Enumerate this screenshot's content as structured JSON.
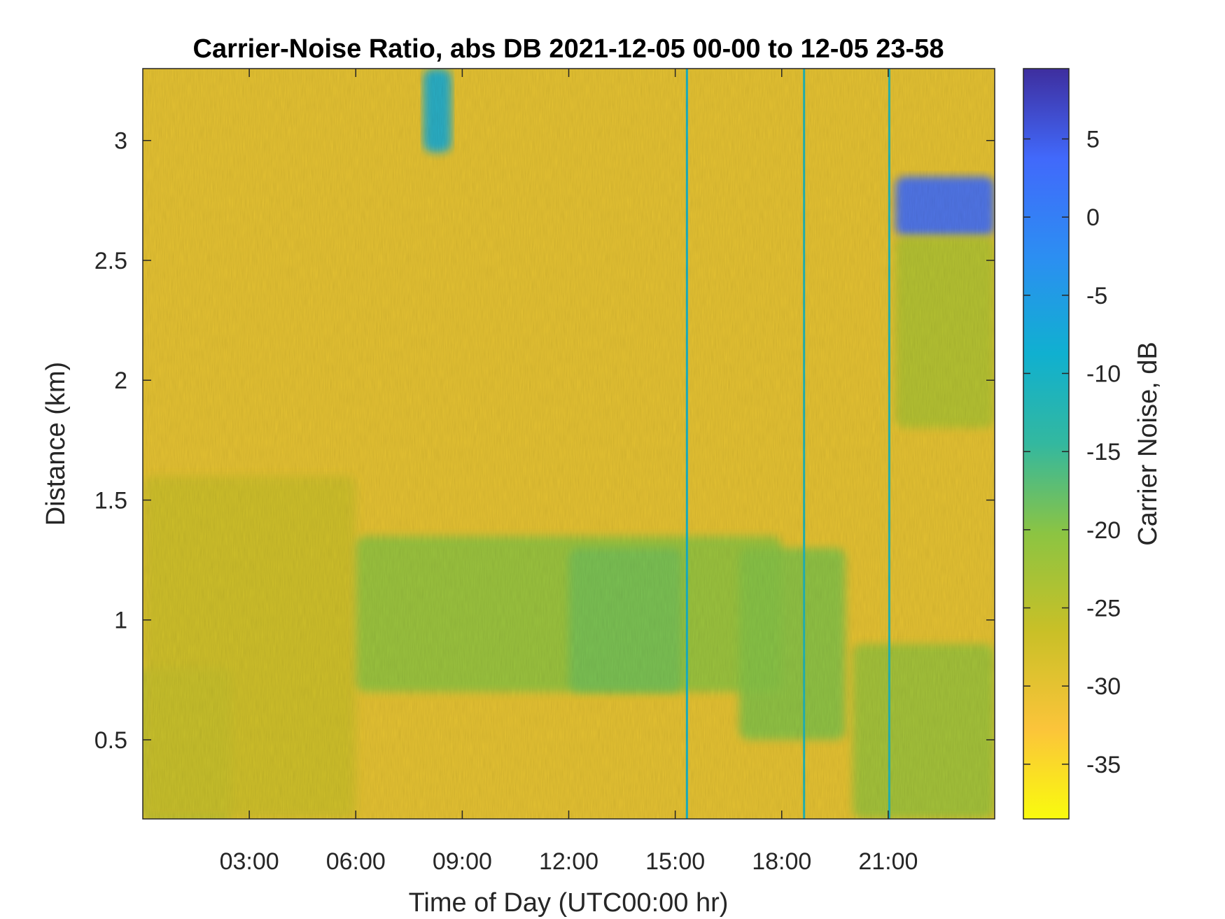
{
  "chart_data": {
    "type": "heatmap",
    "title": "Carrier-Noise Ratio, abs DB 2021-12-05 00-00 to 12-05 23-58",
    "xlabel": "Time of Day (UTC00:00 hr)",
    "ylabel": "Distance (km)",
    "x_ticks": [
      "03:00",
      "06:00",
      "09:00",
      "12:00",
      "15:00",
      "18:00",
      "21:00"
    ],
    "x_tick_hours": [
      3,
      6,
      9,
      12,
      15,
      18,
      21
    ],
    "xlim_hours": [
      0,
      24
    ],
    "y_ticks": [
      "0.5",
      "1",
      "1.5",
      "2",
      "2.5",
      "3"
    ],
    "y_tick_values": [
      0.5,
      1,
      1.5,
      2,
      2.5,
      3
    ],
    "ylim": [
      0.17,
      3.3
    ],
    "colorbar": {
      "label": "Carrier Noise, dB",
      "ticks": [
        "5",
        "0",
        "-5",
        "-10",
        "-15",
        "-20",
        "-25",
        "-30",
        "-35"
      ],
      "tick_values": [
        5,
        0,
        -5,
        -10,
        -15,
        -20,
        -25,
        -30,
        -35
      ],
      "range": [
        -38.5,
        9.5
      ],
      "colormap": "parula"
    },
    "grid": false,
    "features": [
      {
        "time_hr": [
          0,
          2.5
        ],
        "distance_km": [
          0.17,
          0.8
        ],
        "cnr_db": -22
      },
      {
        "time_hr": [
          0,
          6
        ],
        "distance_km": [
          0.17,
          1.6
        ],
        "cnr_db": -27
      },
      {
        "time_hr": [
          6,
          18
        ],
        "distance_km": [
          0.7,
          1.35
        ],
        "cnr_db": -21
      },
      {
        "time_hr": [
          12,
          15.2
        ],
        "distance_km": [
          0.7,
          1.3
        ],
        "cnr_db": -19
      },
      {
        "time_hr": [
          16.8,
          19.8
        ],
        "distance_km": [
          0.5,
          1.3
        ],
        "cnr_db": -20
      },
      {
        "time_hr": [
          20,
          24
        ],
        "distance_km": [
          0.17,
          0.9
        ],
        "cnr_db": -22
      },
      {
        "time_hr": [
          7.9,
          8.7
        ],
        "distance_km": [
          2.95,
          3.3
        ],
        "cnr_db": -8
      },
      {
        "time_hr": [
          21.2,
          24
        ],
        "distance_km": [
          2.6,
          2.85
        ],
        "cnr_db": 3
      },
      {
        "time_hr": [
          21.2,
          24
        ],
        "distance_km": [
          1.8,
          2.6
        ],
        "cnr_db": -24
      },
      {
        "time_hr": [
          15.3,
          15.35
        ],
        "distance_km": [
          0.17,
          3.3
        ],
        "cnr_db": -10
      },
      {
        "time_hr": [
          18.6,
          18.65
        ],
        "distance_km": [
          0.17,
          3.3
        ],
        "cnr_db": -12
      },
      {
        "time_hr": [
          21.0,
          21.05
        ],
        "distance_km": [
          0.17,
          3.3
        ],
        "cnr_db": -12
      }
    ],
    "background_cnr_db": -30
  }
}
